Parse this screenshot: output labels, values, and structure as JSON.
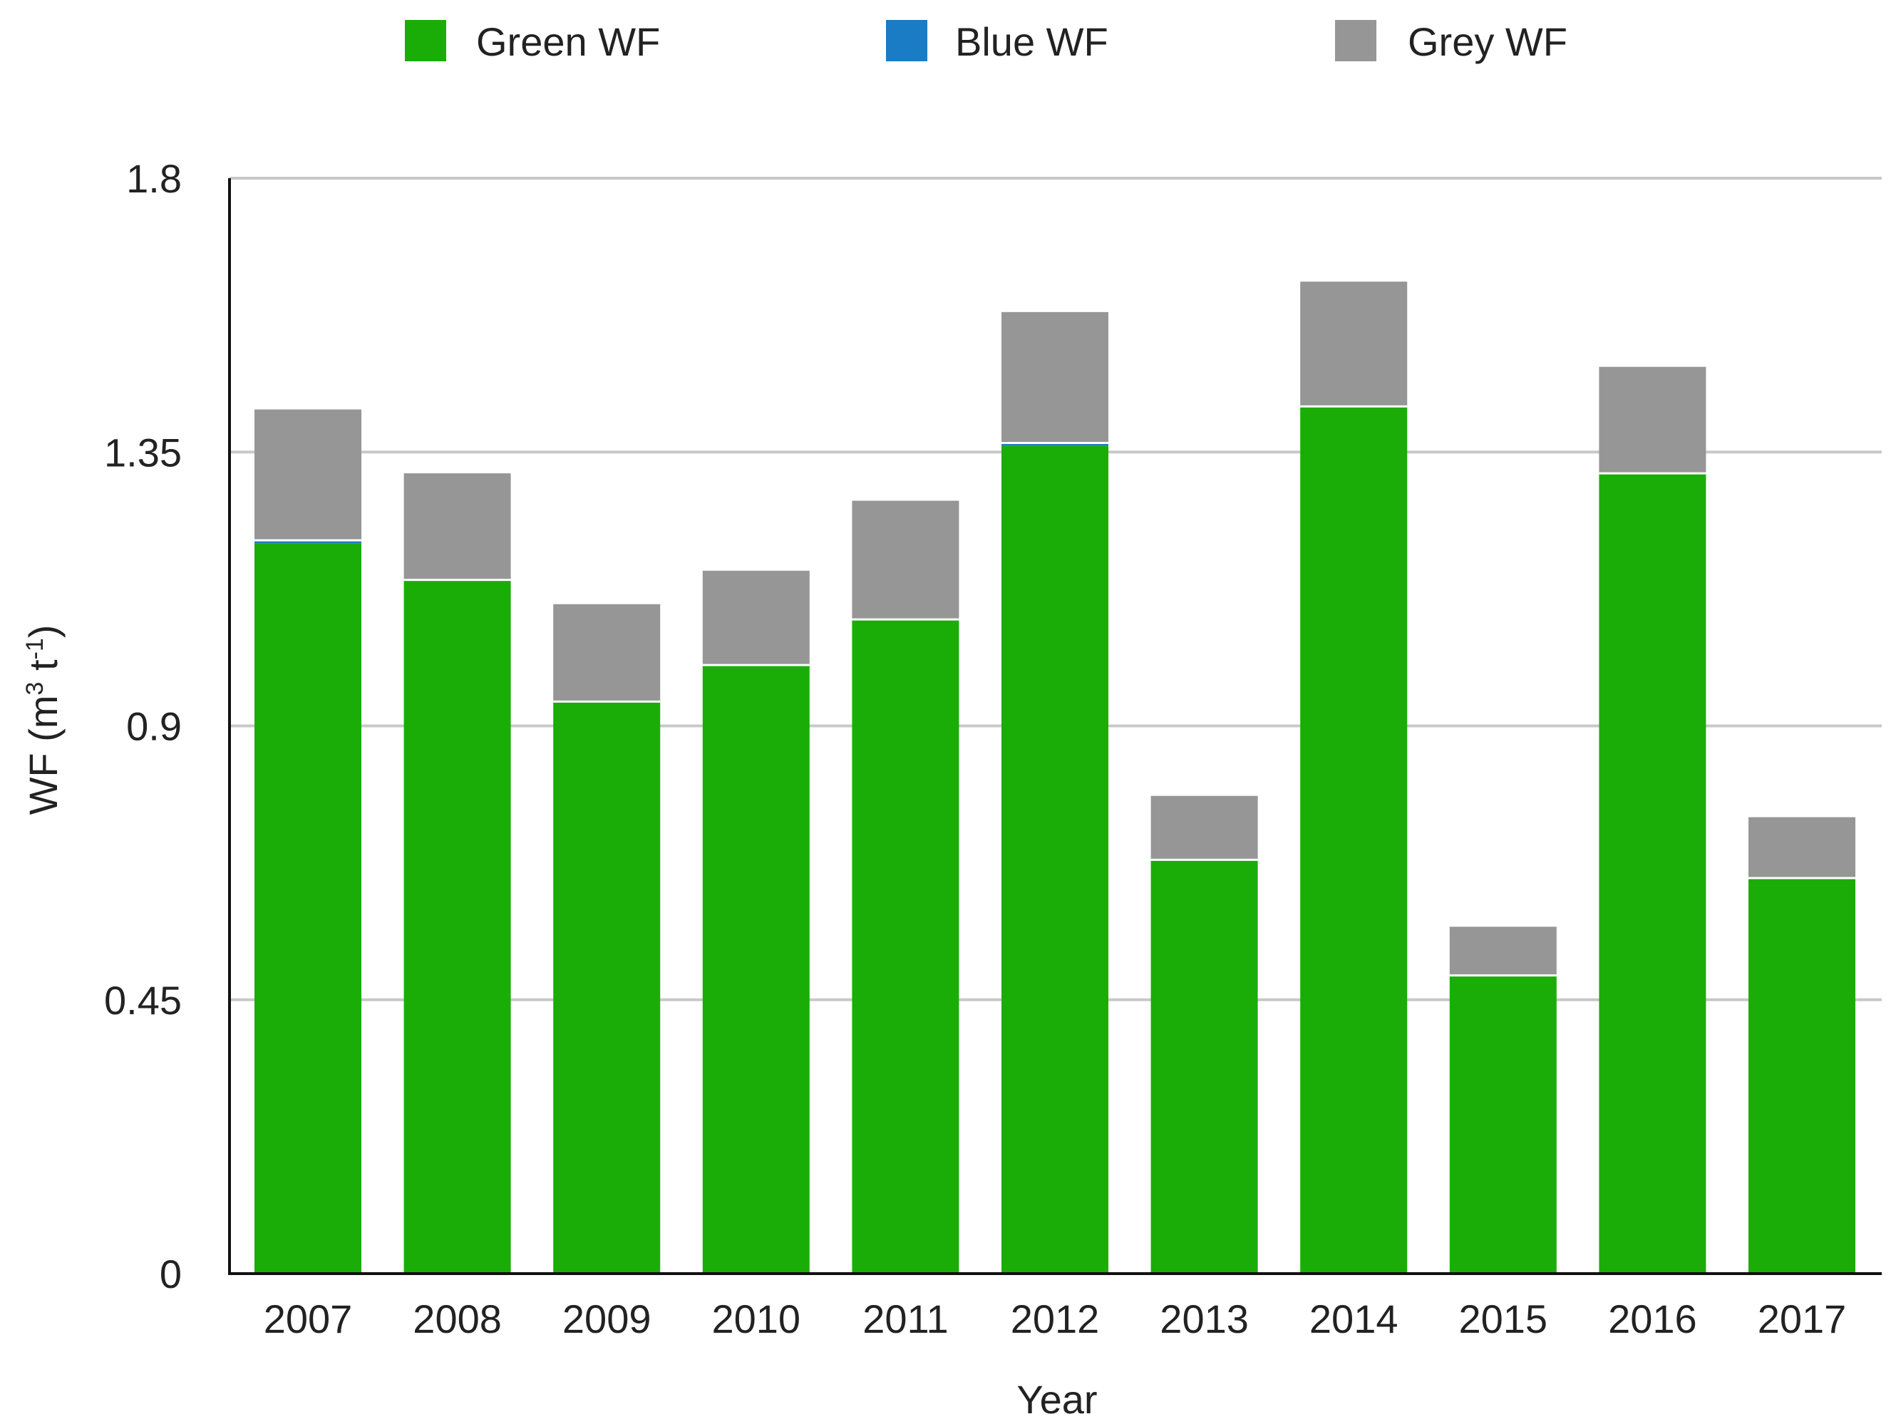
{
  "chart_data": {
    "type": "bar",
    "stacked": true,
    "title": "",
    "xlabel": "Year",
    "ylabel": "WF (m³ t⁻¹)",
    "ylabel_parts": {
      "base": "WF (m",
      "sup1": "3",
      "mid": " t",
      "sup2": "-1",
      "end": ")"
    },
    "ylim": [
      0,
      1.8
    ],
    "yticks": [
      0,
      0.45,
      0.9,
      1.35,
      1.8
    ],
    "ytick_labels": [
      "0",
      "0.45",
      "0.9",
      "1.35",
      "1.8"
    ],
    "grid": true,
    "legend_position": "top",
    "categories": [
      "2007",
      "2008",
      "2009",
      "2010",
      "2011",
      "2012",
      "2013",
      "2014",
      "2015",
      "2016",
      "2017"
    ],
    "series": [
      {
        "name": "Green WF",
        "color": "#1aad07",
        "values": [
          1.2,
          1.14,
          0.94,
          1.0,
          1.075,
          1.36,
          0.68,
          1.425,
          0.49,
          1.315,
          0.65
        ]
      },
      {
        "name": "Blue WF",
        "color": "#1a7cc4",
        "values": [
          0.005,
          0.0,
          0.0,
          0.0,
          0.0,
          0.005,
          0.0,
          0.0,
          0.0,
          0.0,
          0.0
        ]
      },
      {
        "name": "Grey WF",
        "color": "#969696",
        "values": [
          0.215,
          0.175,
          0.16,
          0.155,
          0.195,
          0.215,
          0.105,
          0.205,
          0.08,
          0.175,
          0.1
        ]
      }
    ]
  }
}
